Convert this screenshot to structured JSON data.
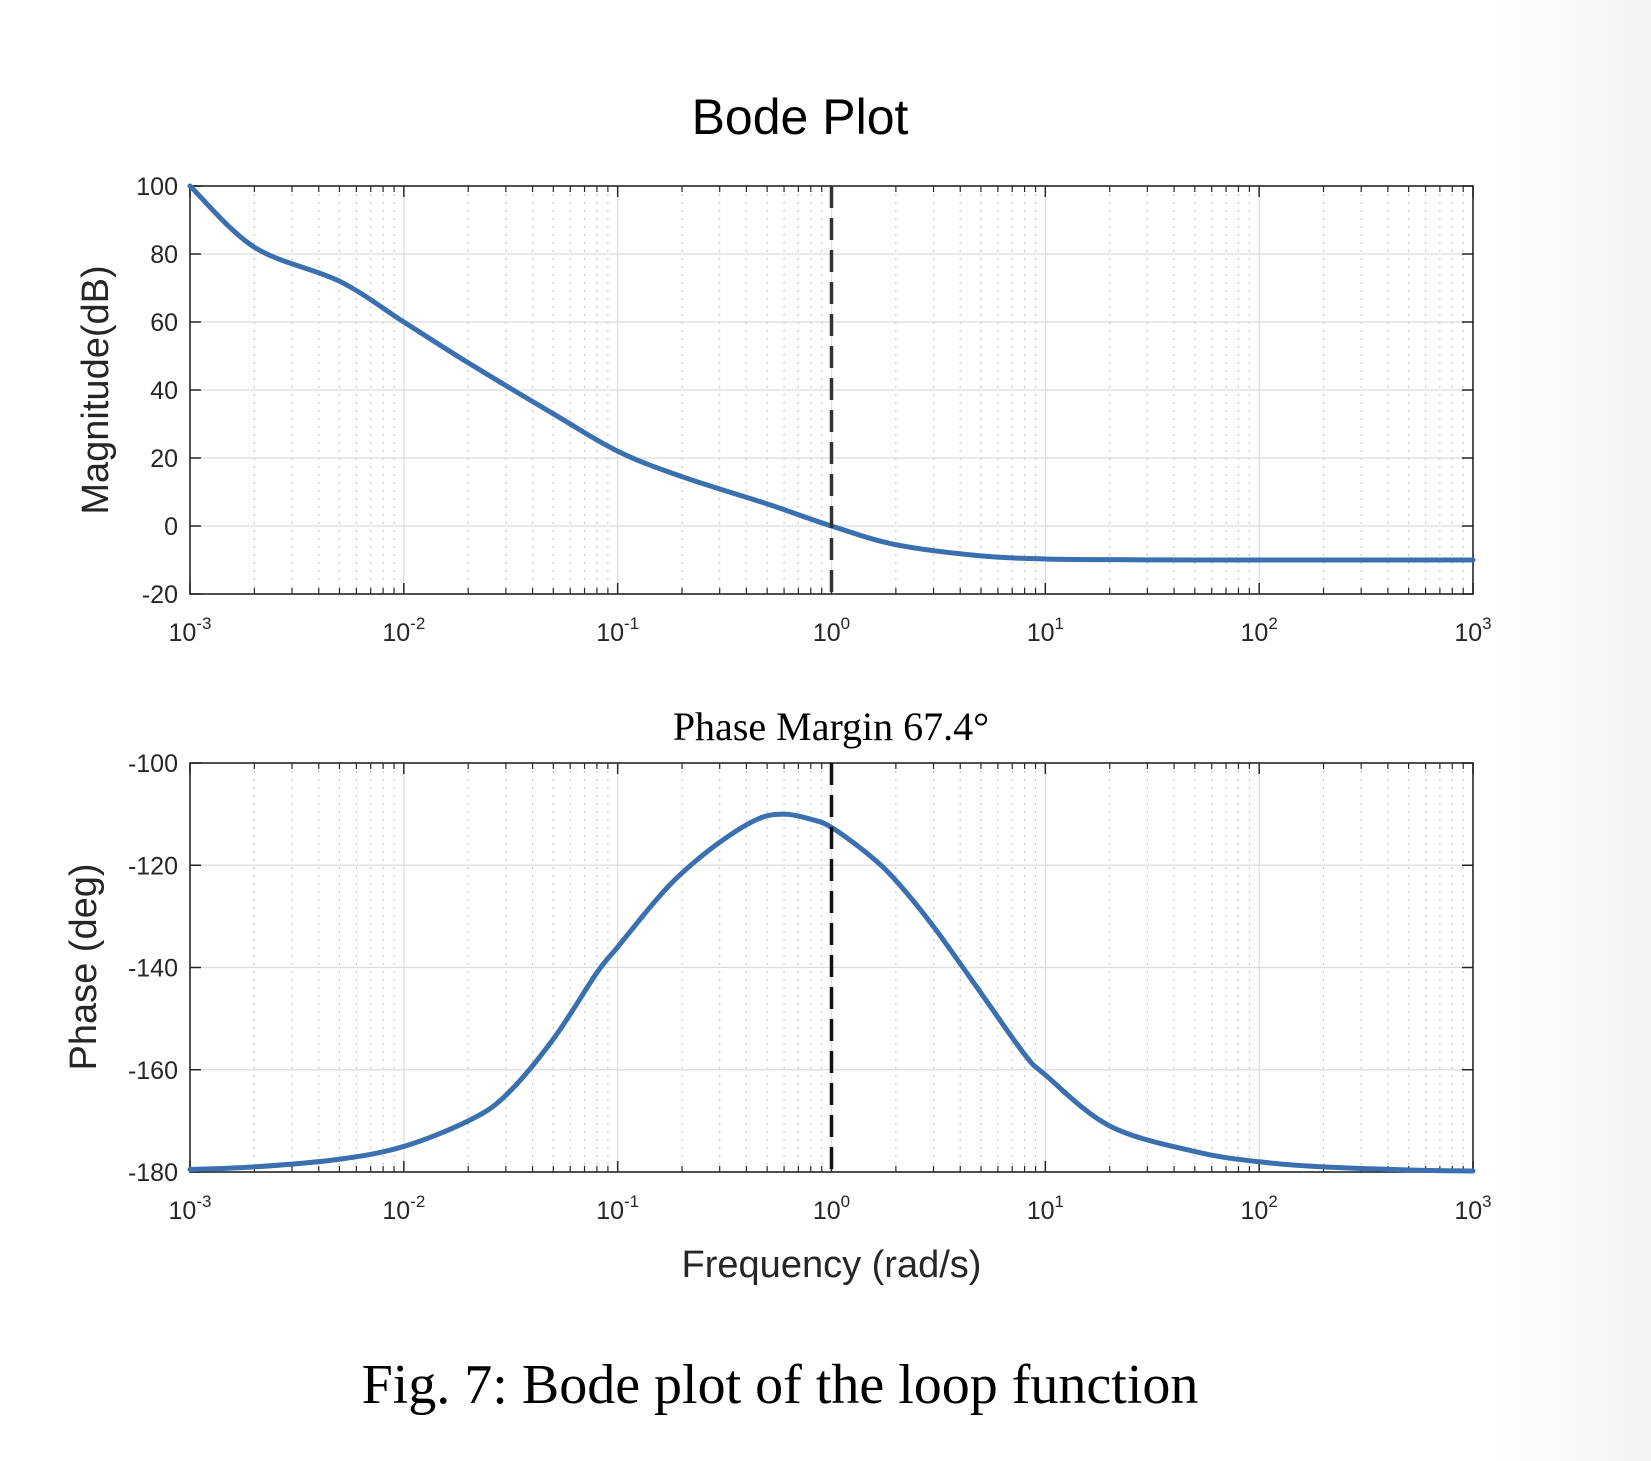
{
  "figure": {
    "caption": "Fig. 7: Bode plot of the loop function"
  },
  "chart_data": [
    {
      "type": "line",
      "title": "Bode Plot",
      "ylabel": "Magnitude(dB)",
      "xlabel": "",
      "xscale": "log",
      "xlim": [
        0.001,
        1000
      ],
      "ylim": [
        -20,
        100
      ],
      "xticks": [
        {
          "base": "10",
          "exp": "-3",
          "value": 0.001
        },
        {
          "base": "10",
          "exp": "-2",
          "value": 0.01
        },
        {
          "base": "10",
          "exp": "-1",
          "value": 0.1
        },
        {
          "base": "10",
          "exp": "0",
          "value": 1
        },
        {
          "base": "10",
          "exp": "1",
          "value": 10
        },
        {
          "base": "10",
          "exp": "2",
          "value": 100
        },
        {
          "base": "10",
          "exp": "3",
          "value": 1000
        }
      ],
      "yticks": [
        "100",
        "80",
        "60",
        "40",
        "20",
        "0",
        "-20"
      ],
      "grid": true,
      "color": "#3a6fb0",
      "vline": {
        "x": 1,
        "style": "dashed",
        "color": "#333333"
      },
      "series": [
        {
          "x": [
            0.001,
            0.002,
            0.005,
            0.01,
            0.02,
            0.05,
            0.1,
            0.2,
            0.5,
            1,
            2,
            5,
            10,
            20,
            50,
            100,
            200,
            500,
            1000
          ],
          "y": [
            100,
            82,
            72,
            60,
            48,
            33,
            22,
            14.5,
            6.5,
            0,
            -5.5,
            -8.8,
            -9.7,
            -9.9,
            -10,
            -10,
            -10,
            -10,
            -10
          ]
        }
      ]
    },
    {
      "type": "line",
      "title": "Phase Margin 67.4°",
      "ylabel": "Phase (deg)",
      "xlabel": "Frequency (rad/s)",
      "xscale": "log",
      "xlim": [
        0.001,
        1000
      ],
      "ylim": [
        -180,
        -100
      ],
      "xticks": [
        {
          "base": "10",
          "exp": "-3",
          "value": 0.001
        },
        {
          "base": "10",
          "exp": "-2",
          "value": 0.01
        },
        {
          "base": "10",
          "exp": "-1",
          "value": 0.1
        },
        {
          "base": "10",
          "exp": "0",
          "value": 1
        },
        {
          "base": "10",
          "exp": "1",
          "value": 10
        },
        {
          "base": "10",
          "exp": "2",
          "value": 100
        },
        {
          "base": "10",
          "exp": "3",
          "value": 1000
        }
      ],
      "yticks": [
        "-100",
        "-120",
        "-140",
        "-160",
        "-180"
      ],
      "grid": true,
      "color": "#3a6fb0",
      "vline": {
        "x": 1,
        "style": "dashed",
        "color": "#111111"
      },
      "series": [
        {
          "x": [
            0.001,
            0.002,
            0.005,
            0.01,
            0.02,
            0.03,
            0.05,
            0.08,
            0.1,
            0.15,
            0.2,
            0.3,
            0.45,
            0.6,
            0.8,
            1,
            1.5,
            2,
            3,
            5,
            8,
            10,
            20,
            50,
            100,
            200,
            500,
            1000
          ],
          "y": [
            -179.5,
            -179,
            -177.5,
            -175,
            -170,
            -165,
            -154,
            -141,
            -136,
            -127,
            -121.5,
            -115.5,
            -111,
            -110,
            -111,
            -112.6,
            -118,
            -123,
            -132,
            -145,
            -157,
            -161,
            -171,
            -176,
            -178,
            -179,
            -179.6,
            -179.8
          ]
        }
      ]
    }
  ]
}
